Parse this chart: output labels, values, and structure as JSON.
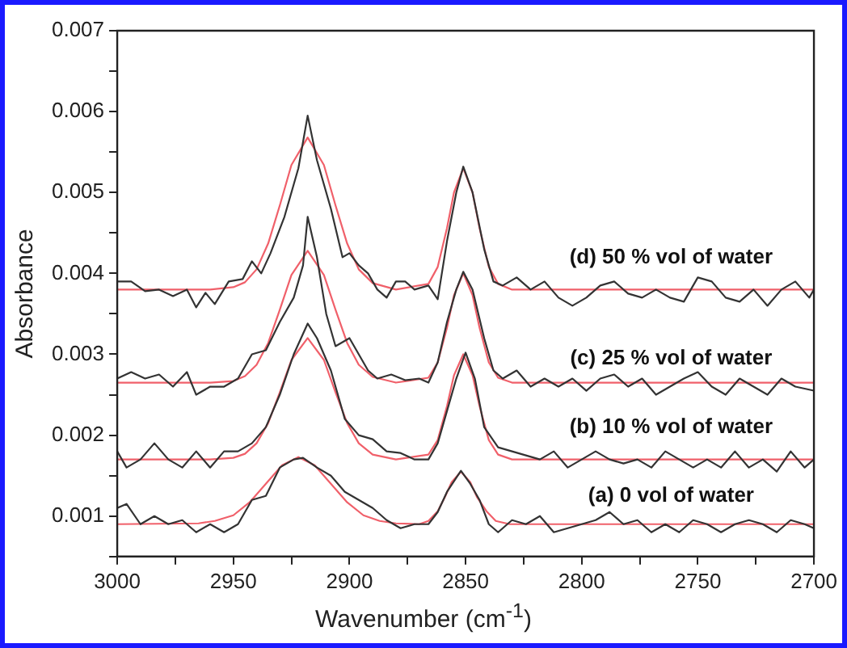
{
  "chart_data": {
    "type": "line",
    "xlabel": "Wavenumber (cm$^{-1}$)",
    "ylabel": "Absorbance",
    "xlim": [
      3000,
      2700
    ],
    "ylim": [
      0.0005,
      0.007
    ],
    "xticks": [
      3000,
      {
        "value": 2975,
        "label": null
      },
      2950,
      {
        "value": 2925,
        "label": null
      },
      2900,
      {
        "value": 2875,
        "label": null
      },
      2850,
      {
        "value": 2825,
        "label": null
      },
      2800,
      {
        "value": 2775,
        "label": null
      },
      2750,
      {
        "value": 2725,
        "label": null
      },
      2700
    ],
    "yticks": [
      {
        "value": 0.0005,
        "label": null
      },
      0.001,
      {
        "value": 0.0015,
        "label": null
      },
      0.002,
      {
        "value": 0.0025,
        "label": null
      },
      0.003,
      {
        "value": 0.0035,
        "label": null
      },
      0.004,
      {
        "value": 0.0045,
        "label": null
      },
      0.005,
      {
        "value": 0.0055,
        "label": null
      },
      0.006,
      {
        "value": 0.0065,
        "label": null
      },
      0.007
    ],
    "grid": false,
    "legend": false,
    "marker": "none",
    "line_style": "solid",
    "series": [
      {
        "name": "(d) 50 % vol of water",
        "color": "#333333",
        "x": [
          3000,
          2994,
          2988,
          2982,
          2976,
          2970,
          2966,
          2962,
          2958,
          2952,
          2946,
          2942,
          2938,
          2934,
          2928,
          2922,
          2918,
          2914,
          2908,
          2903,
          2900,
          2896,
          2892,
          2888,
          2884,
          2880,
          2876,
          2872,
          2866,
          2862,
          2858,
          2854,
          2851,
          2847,
          2842,
          2838,
          2834,
          2828,
          2822,
          2816,
          2810,
          2804,
          2798,
          2792,
          2786,
          2780,
          2774,
          2768,
          2762,
          2756,
          2750,
          2744,
          2738,
          2732,
          2726,
          2720,
          2714,
          2708,
          2702,
          2700
        ],
        "values": [
          0.0039,
          0.0039,
          0.00378,
          0.0038,
          0.00372,
          0.0038,
          0.00358,
          0.00376,
          0.00362,
          0.0039,
          0.00393,
          0.00415,
          0.004,
          0.00425,
          0.0047,
          0.0053,
          0.00595,
          0.0054,
          0.0048,
          0.0042,
          0.00425,
          0.0041,
          0.004,
          0.0038,
          0.0037,
          0.0039,
          0.0039,
          0.0038,
          0.00385,
          0.00368,
          0.0044,
          0.005,
          0.00532,
          0.005,
          0.0043,
          0.0039,
          0.00385,
          0.00395,
          0.0038,
          0.0039,
          0.0037,
          0.0036,
          0.0037,
          0.00385,
          0.0039,
          0.00375,
          0.0037,
          0.0038,
          0.0037,
          0.00365,
          0.00395,
          0.0039,
          0.0037,
          0.00365,
          0.0038,
          0.0036,
          0.0038,
          0.0039,
          0.0037,
          0.0038
        ]
      },
      {
        "name": "(c) 25 % vol of water",
        "color": "#333333",
        "x": [
          3000,
          2994,
          2988,
          2982,
          2976,
          2970,
          2966,
          2960,
          2954,
          2948,
          2942,
          2936,
          2930,
          2924,
          2920,
          2918,
          2914,
          2910,
          2906,
          2900,
          2896,
          2892,
          2888,
          2882,
          2876,
          2870,
          2866,
          2862,
          2858,
          2854,
          2851,
          2847,
          2842,
          2838,
          2834,
          2828,
          2822,
          2816,
          2810,
          2804,
          2798,
          2792,
          2786,
          2780,
          2774,
          2768,
          2762,
          2756,
          2750,
          2744,
          2738,
          2732,
          2726,
          2720,
          2714,
          2708,
          2700
        ],
        "values": [
          0.0027,
          0.00278,
          0.0027,
          0.00275,
          0.0026,
          0.00278,
          0.0025,
          0.0026,
          0.0026,
          0.0027,
          0.003,
          0.00305,
          0.0034,
          0.0037,
          0.0041,
          0.0047,
          0.0042,
          0.0035,
          0.0031,
          0.0032,
          0.003,
          0.0028,
          0.0027,
          0.00275,
          0.00268,
          0.0027,
          0.00265,
          0.0029,
          0.0034,
          0.0038,
          0.00402,
          0.0038,
          0.0032,
          0.0028,
          0.0027,
          0.0028,
          0.0026,
          0.0027,
          0.0026,
          0.0027,
          0.00255,
          0.0027,
          0.00275,
          0.0026,
          0.0027,
          0.0025,
          0.0026,
          0.0027,
          0.00278,
          0.0026,
          0.0025,
          0.0027,
          0.0026,
          0.0025,
          0.0027,
          0.0026,
          0.00255
        ]
      },
      {
        "name": "(b) 10 % vol of water",
        "color": "#333333",
        "x": [
          3000,
          2996,
          2990,
          2984,
          2978,
          2972,
          2966,
          2960,
          2954,
          2948,
          2942,
          2936,
          2930,
          2924,
          2918,
          2914,
          2908,
          2902,
          2896,
          2890,
          2884,
          2878,
          2872,
          2866,
          2862,
          2858,
          2854,
          2850,
          2846,
          2842,
          2836,
          2830,
          2824,
          2818,
          2812,
          2806,
          2800,
          2794,
          2788,
          2782,
          2776,
          2770,
          2764,
          2758,
          2752,
          2746,
          2740,
          2734,
          2728,
          2722,
          2716,
          2710,
          2704,
          2700
        ],
        "values": [
          0.0018,
          0.0016,
          0.0017,
          0.0019,
          0.0017,
          0.0016,
          0.0018,
          0.0016,
          0.0018,
          0.0018,
          0.0019,
          0.0021,
          0.0025,
          0.003,
          0.00338,
          0.0032,
          0.0028,
          0.0022,
          0.002,
          0.00195,
          0.0018,
          0.00178,
          0.0017,
          0.0017,
          0.0019,
          0.0023,
          0.0027,
          0.00302,
          0.0027,
          0.0021,
          0.00185,
          0.0018,
          0.00175,
          0.0017,
          0.0018,
          0.0016,
          0.0017,
          0.0018,
          0.0017,
          0.00165,
          0.0017,
          0.0016,
          0.0018,
          0.0017,
          0.0016,
          0.0017,
          0.0016,
          0.0018,
          0.0016,
          0.0017,
          0.00155,
          0.0018,
          0.0016,
          0.0017
        ]
      },
      {
        "name": "(a) 0 vol of water",
        "color": "#333333",
        "x": [
          3000,
          2996,
          2990,
          2984,
          2978,
          2972,
          2966,
          2960,
          2954,
          2948,
          2942,
          2936,
          2930,
          2924,
          2920,
          2914,
          2908,
          2902,
          2896,
          2890,
          2884,
          2878,
          2872,
          2866,
          2862,
          2858,
          2852,
          2848,
          2844,
          2840,
          2836,
          2830,
          2824,
          2818,
          2812,
          2806,
          2800,
          2794,
          2788,
          2782,
          2776,
          2770,
          2764,
          2758,
          2752,
          2746,
          2740,
          2734,
          2728,
          2722,
          2716,
          2710,
          2704,
          2700
        ],
        "values": [
          0.0011,
          0.00115,
          0.0009,
          0.001,
          0.0009,
          0.00095,
          0.0008,
          0.0009,
          0.0008,
          0.0009,
          0.0012,
          0.00125,
          0.0016,
          0.0017,
          0.00172,
          0.0016,
          0.0015,
          0.0013,
          0.0012,
          0.0011,
          0.00095,
          0.00085,
          0.0009,
          0.0009,
          0.00105,
          0.0013,
          0.00156,
          0.0014,
          0.0012,
          0.0009,
          0.0008,
          0.00095,
          0.0009,
          0.001,
          0.0008,
          0.00085,
          0.0009,
          0.00095,
          0.00105,
          0.0009,
          0.00095,
          0.0008,
          0.0009,
          0.0008,
          0.00095,
          0.0009,
          0.0008,
          0.0009,
          0.00095,
          0.0009,
          0.0008,
          0.00095,
          0.0009,
          0.00085
        ]
      },
      {
        "color": "#f0606a",
        "x": [
          3000,
          2960,
          2950,
          2945,
          2940,
          2935,
          2930,
          2925,
          2918,
          2911,
          2906,
          2901,
          2896,
          2890,
          2880,
          2866,
          2862,
          2858,
          2855,
          2851,
          2847,
          2844,
          2840,
          2836,
          2830,
          2700
        ],
        "values": [
          0.0038,
          0.0038,
          0.00383,
          0.00389,
          0.00405,
          0.00437,
          0.00484,
          0.00534,
          0.00568,
          0.00534,
          0.00484,
          0.00437,
          0.00405,
          0.00388,
          0.0038,
          0.00387,
          0.00408,
          0.00456,
          0.005,
          0.0053,
          0.005,
          0.00456,
          0.00408,
          0.00387,
          0.0038,
          0.0038
        ]
      },
      {
        "color": "#f0606a",
        "x": [
          3000,
          2960,
          2950,
          2945,
          2940,
          2935,
          2930,
          2925,
          2918,
          2911,
          2906,
          2901,
          2896,
          2890,
          2880,
          2866,
          2862,
          2858,
          2855,
          2851,
          2847,
          2844,
          2840,
          2836,
          2830,
          2700
        ],
        "values": [
          0.00265,
          0.00265,
          0.00267,
          0.00273,
          0.00287,
          0.00314,
          0.00355,
          0.00398,
          0.00428,
          0.00398,
          0.00355,
          0.00314,
          0.00287,
          0.00272,
          0.00265,
          0.00271,
          0.0029,
          0.00333,
          0.00373,
          0.004,
          0.00373,
          0.00333,
          0.0029,
          0.00271,
          0.00265,
          0.00265
        ]
      },
      {
        "color": "#f0606a",
        "x": [
          3000,
          2960,
          2950,
          2945,
          2940,
          2935,
          2930,
          2925,
          2918,
          2911,
          2906,
          2901,
          2896,
          2890,
          2880,
          2866,
          2862,
          2858,
          2855,
          2851,
          2847,
          2844,
          2840,
          2836,
          2830,
          2700
        ],
        "values": [
          0.0017,
          0.0017,
          0.00172,
          0.00177,
          0.0019,
          0.00215,
          0.00253,
          0.00293,
          0.0032,
          0.00293,
          0.00253,
          0.00215,
          0.0019,
          0.00176,
          0.0017,
          0.00176,
          0.00194,
          0.00236,
          0.00274,
          0.003,
          0.00274,
          0.00236,
          0.00194,
          0.00176,
          0.0017,
          0.0017
        ]
      },
      {
        "color": "#f0606a",
        "x": [
          3000,
          2965,
          2958,
          2950,
          2943,
          2936,
          2929,
          2922,
          2915,
          2908,
          2901,
          2894,
          2887,
          2880,
          2870,
          2866,
          2862,
          2859,
          2856,
          2852,
          2848,
          2845,
          2841,
          2837,
          2831,
          2700
        ],
        "values": [
          0.0009,
          0.00091,
          0.00094,
          0.00101,
          0.00117,
          0.0014,
          0.00163,
          0.00173,
          0.00163,
          0.0014,
          0.00117,
          0.00101,
          0.00094,
          0.00091,
          0.0009,
          0.00094,
          0.00106,
          0.00123,
          0.00142,
          0.00155,
          0.00142,
          0.00123,
          0.00106,
          0.00094,
          0.0009,
          0.0009
        ]
      }
    ]
  }
}
